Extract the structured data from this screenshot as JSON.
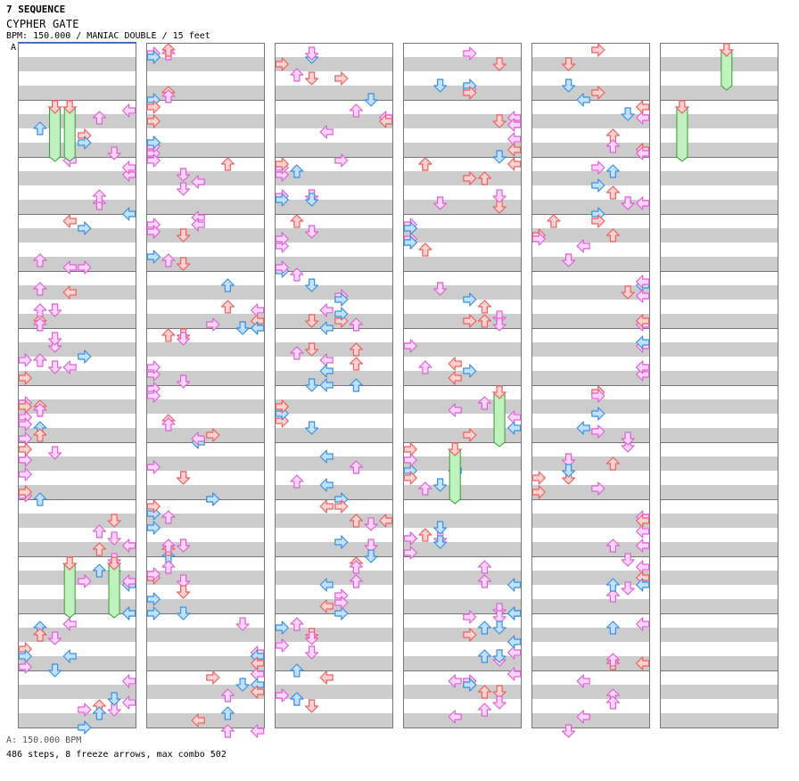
{
  "header": {
    "sequence": "7 SEQUENCE",
    "song_title": "CYPHER GATE",
    "info": "BPM: 150.000 / MANIAC DOUBLE / 15 feet",
    "bpm_marker": "A"
  },
  "footer": {
    "bpm_legend": "A: 150.000 BPM",
    "stats": "486 steps, 8 freeze arrows, max combo 502"
  },
  "colors": {
    "red_arrow": "#ef5f5f",
    "red_arrow_fill": "#ffd2d2",
    "blue_arrow": "#3d8fe0",
    "blue_arrow_fill": "#bfe0ff",
    "pink_arrow": "#e05fd8",
    "pink_arrow_fill": "#ffd6fb",
    "freeze_fill": "#bff2bf",
    "freeze_stroke": "#3a9a3a",
    "stripe": "#cccccc",
    "bpm_line": "#2b67d8"
  },
  "chart_data": {
    "type": "step-chart",
    "title": "CYPHER GATE",
    "difficulty": "MANIAC DOUBLE",
    "feet": 15,
    "bpm": 150.0,
    "panels": 8,
    "columns": 6,
    "measures_per_column": 12,
    "total_measures": 61,
    "steps": 486,
    "freeze_arrows": 8,
    "max_combo": 502,
    "note_colors": {
      "quarter": "red",
      "eighth": "blue",
      "sixteenth": "pink"
    },
    "freezes": [
      {
        "column": 1,
        "panel": 3,
        "start_measure": 1,
        "start_beat": 0,
        "length_beats": 3.5
      },
      {
        "column": 1,
        "panel": 4,
        "start_measure": 1,
        "start_beat": 0,
        "length_beats": 3.5
      },
      {
        "column": 1,
        "panel": 4,
        "start_measure": 9,
        "start_beat": 0,
        "length_beats": 3.5
      },
      {
        "column": 1,
        "panel": 7,
        "start_measure": 9,
        "start_beat": 0,
        "length_beats": 3.5
      },
      {
        "column": 4,
        "panel": 7,
        "start_measure": 6,
        "start_beat": 0,
        "length_beats": 3.5
      },
      {
        "column": 4,
        "panel": 4,
        "start_measure": 7,
        "start_beat": 0,
        "length_beats": 3.5
      },
      {
        "column": 6,
        "panel": 5,
        "start_measure": 0,
        "start_beat": 0,
        "length_beats": 2.5
      },
      {
        "column": 6,
        "panel": 2,
        "start_measure": 1,
        "start_beat": 0,
        "length_beats": 3.5
      }
    ]
  }
}
